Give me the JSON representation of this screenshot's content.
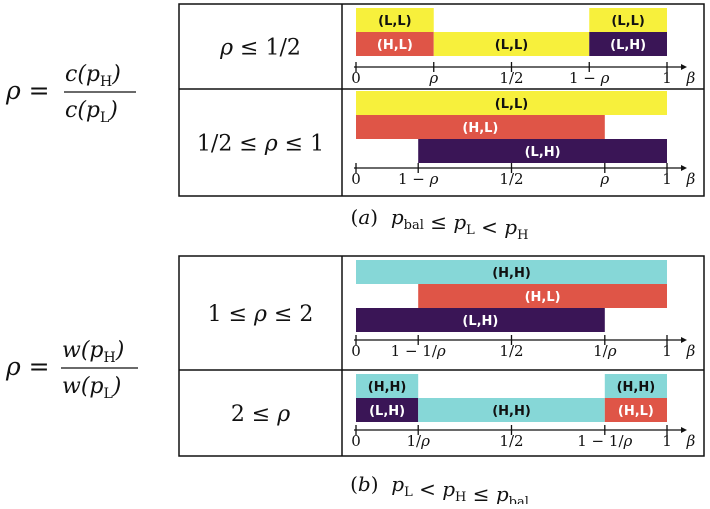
{
  "colors": {
    "yellow": "#f7f03c",
    "red": "#df5547",
    "purple": "#3a1556",
    "cyan": "#86d7d7",
    "line": "#111111",
    "label_dark": "#111111",
    "label_light": "#ffffff"
  },
  "left_labels": {
    "a": {
      "lhs": "ρ =",
      "num": "c(p",
      "num_sub": "H",
      "num_close": ")",
      "den": "c(p",
      "den_sub": "L",
      "den_close": ")"
    },
    "b": {
      "lhs": "ρ =",
      "num": "w(p",
      "num_sub": "H",
      "num_close": ")",
      "den": "w(p",
      "den_sub": "L",
      "den_close": ")"
    }
  },
  "panels": [
    {
      "caption": "(a)  p_bal ≤ p_L < p_H",
      "rows": [
        {
          "condition": "ρ ≤ 1/2",
          "bars": [
            {
              "label": "(L,L)",
              "color": "yellow",
              "x0": 0,
              "x1": 0.25,
              "lane": 0
            },
            {
              "label": "(L,L)",
              "color": "yellow",
              "x0": 0.75,
              "x1": 1,
              "lane": 0
            },
            {
              "label": "(H,L)",
              "color": "red",
              "x0": 0,
              "x1": 0.25,
              "lane": 1
            },
            {
              "label": "(L,L)",
              "color": "yellow",
              "x0": 0.25,
              "x1": 0.75,
              "lane": 1
            },
            {
              "label": "(L,H)",
              "color": "purple",
              "x0": 0.75,
              "x1": 1,
              "lane": 1
            }
          ],
          "ticks": [
            {
              "label": "0",
              "x": 0
            },
            {
              "label": "ρ",
              "x": 0.25
            },
            {
              "label": "1/2",
              "x": 0.5
            },
            {
              "label": "1 − ρ",
              "x": 0.75
            },
            {
              "label": "1",
              "x": 1
            }
          ],
          "axis_label": "β"
        },
        {
          "condition": "1/2 ≤ ρ ≤ 1",
          "bars": [
            {
              "label": "(L,L)",
              "color": "yellow",
              "x0": 0,
              "x1": 1,
              "lane": 0
            },
            {
              "label": "(H,L)",
              "color": "red",
              "x0": 0,
              "x1": 0.8,
              "lane": 1
            },
            {
              "label": "(L,H)",
              "color": "purple",
              "x0": 0.2,
              "x1": 1,
              "lane": 2
            }
          ],
          "ticks": [
            {
              "label": "0",
              "x": 0
            },
            {
              "label": "1 − ρ",
              "x": 0.2
            },
            {
              "label": "1/2",
              "x": 0.5
            },
            {
              "label": "ρ",
              "x": 0.8
            },
            {
              "label": "1",
              "x": 1
            }
          ],
          "axis_label": "β"
        }
      ]
    },
    {
      "caption": "(b)  p_L < p_H ≤ p_bal",
      "rows": [
        {
          "condition": "1 ≤ ρ ≤ 2",
          "bars": [
            {
              "label": "(H,H)",
              "color": "cyan",
              "x0": 0,
              "x1": 1,
              "lane": 0
            },
            {
              "label": "(H,L)",
              "color": "red",
              "x0": 0.2,
              "x1": 1,
              "lane": 1
            },
            {
              "label": "(L,H)",
              "color": "purple",
              "x0": 0,
              "x1": 0.8,
              "lane": 2
            }
          ],
          "ticks": [
            {
              "label": "0",
              "x": 0
            },
            {
              "label": "1 − 1/ρ",
              "x": 0.2
            },
            {
              "label": "1/2",
              "x": 0.5
            },
            {
              "label": "1/ρ",
              "x": 0.8
            },
            {
              "label": "1",
              "x": 1
            }
          ],
          "axis_label": "β"
        },
        {
          "condition": "2 ≤ ρ",
          "bars": [
            {
              "label": "(H,H)",
              "color": "cyan",
              "x0": 0,
              "x1": 0.2,
              "lane": 0
            },
            {
              "label": "(H,H)",
              "color": "cyan",
              "x0": 0.8,
              "x1": 1,
              "lane": 0
            },
            {
              "label": "(L,H)",
              "color": "purple",
              "x0": 0,
              "x1": 0.2,
              "lane": 1
            },
            {
              "label": "(H,H)",
              "color": "cyan",
              "x0": 0.2,
              "x1": 0.8,
              "lane": 1
            },
            {
              "label": "(H,L)",
              "color": "red",
              "x0": 0.8,
              "x1": 1,
              "lane": 1
            }
          ],
          "ticks": [
            {
              "label": "0",
              "x": 0
            },
            {
              "label": "1/ρ",
              "x": 0.2
            },
            {
              "label": "1/2",
              "x": 0.5
            },
            {
              "label": "1 − 1/ρ",
              "x": 0.8
            },
            {
              "label": "1",
              "x": 1
            }
          ],
          "axis_label": "β"
        }
      ]
    }
  ]
}
